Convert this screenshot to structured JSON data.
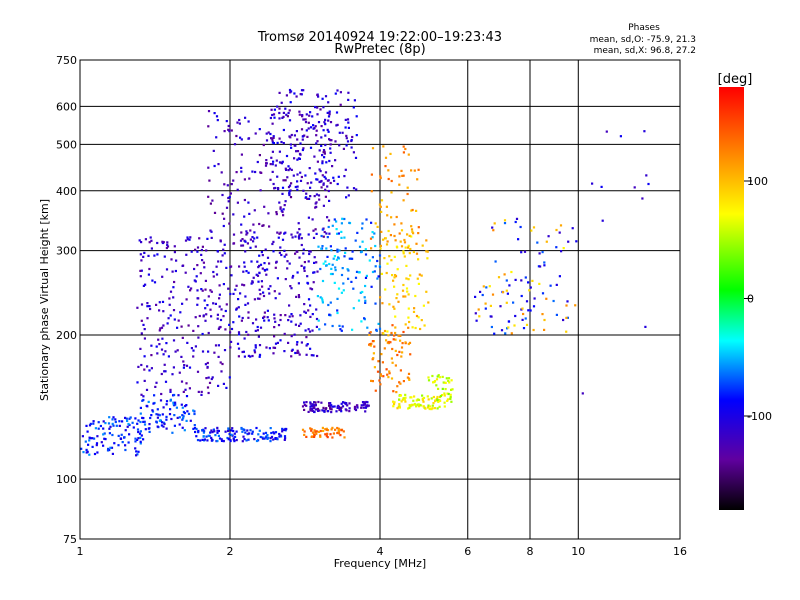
{
  "title": "Tromsø 20140924 19:22:00–19:23:43",
  "subtitle": "RwPretec (8p)",
  "stats": {
    "heading": "Phases",
    "line_o": "mean, sd,O: -75.9, 21.3",
    "line_x": "mean, sd,X:  96.8, 27.2"
  },
  "chart_data": {
    "type": "scatter",
    "xlabel": "Frequency [MHz]",
    "ylabel": "Stationary phase Virtual Height [km]",
    "xscale": "log",
    "yscale": "log",
    "xlim": [
      1,
      16
    ],
    "ylim": [
      75,
      750
    ],
    "xticks": [
      1,
      2,
      4,
      6,
      8,
      10,
      16
    ],
    "yticks": [
      75,
      100,
      200,
      300,
      400,
      500,
      600,
      750
    ],
    "grid": true,
    "colorbar": {
      "label": "[deg]",
      "range": [
        -180,
        180
      ],
      "ticks": [
        100,
        0,
        -100
      ],
      "colormap": [
        "#000000",
        "#8000c0",
        "#0000ff",
        "#00ffff",
        "#00ff00",
        "#ffff00",
        "#ff8000",
        "#ff0000"
      ]
    },
    "clusters": [
      {
        "x": [
          1.0,
          1.35
        ],
        "y": [
          112,
          135
        ],
        "phase": -80,
        "n": 110
      },
      {
        "x": [
          1.3,
          1.7
        ],
        "y": [
          125,
          150
        ],
        "phase": -80,
        "n": 90
      },
      {
        "x": [
          1.7,
          2.6
        ],
        "y": [
          120,
          128
        ],
        "phase": -85,
        "n": 130
      },
      {
        "x": [
          1.3,
          2.0
        ],
        "y": [
          150,
          320
        ],
        "phase": -115,
        "n": 260
      },
      {
        "x": [
          2.0,
          3.0
        ],
        "y": [
          180,
          330
        ],
        "phase": -112,
        "n": 260
      },
      {
        "x": [
          1.8,
          3.2
        ],
        "y": [
          320,
          600
        ],
        "phase": -118,
        "n": 240
      },
      {
        "x": [
          2.4,
          3.6
        ],
        "y": [
          380,
          650
        ],
        "phase": -110,
        "n": 170
      },
      {
        "x": [
          2.8,
          3.8
        ],
        "y": [
          138,
          145
        ],
        "phase": -120,
        "n": 110
      },
      {
        "x": [
          2.8,
          3.4
        ],
        "y": [
          122,
          128
        ],
        "phase": 130,
        "n": 50
      },
      {
        "x": [
          3.0,
          4.0
        ],
        "y": [
          200,
          350
        ],
        "phase": -60,
        "n": 140
      },
      {
        "x": [
          3.8,
          4.6
        ],
        "y": [
          150,
          210
        ],
        "phase": 125,
        "n": 80
      },
      {
        "x": [
          4.0,
          5.0
        ],
        "y": [
          200,
          330
        ],
        "phase": 95,
        "n": 90
      },
      {
        "x": [
          3.8,
          4.8
        ],
        "y": [
          300,
          500
        ],
        "phase": 115,
        "n": 60
      },
      {
        "x": [
          4.2,
          5.4
        ],
        "y": [
          140,
          150
        ],
        "phase": 70,
        "n": 80
      },
      {
        "x": [
          5.0,
          5.6
        ],
        "y": [
          145,
          165
        ],
        "phase": 60,
        "n": 40
      },
      {
        "x": [
          6.2,
          10.0
        ],
        "y": [
          200,
          350
        ],
        "phase": -90,
        "n": 70
      },
      {
        "x": [
          6.2,
          10.0
        ],
        "y": [
          200,
          350
        ],
        "phase": 100,
        "n": 40
      },
      {
        "x": [
          10.0,
          15.0
        ],
        "y": [
          130,
          600
        ],
        "phase": -100,
        "n": 12
      }
    ]
  }
}
